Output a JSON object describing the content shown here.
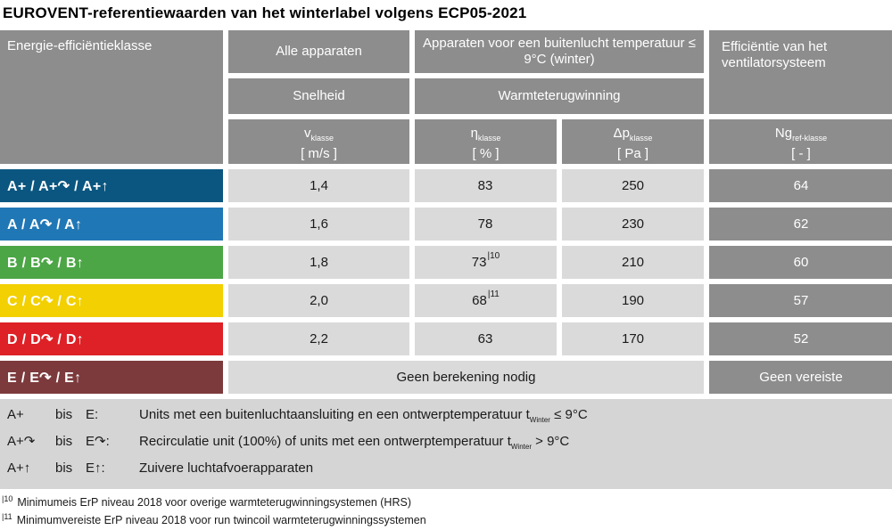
{
  "title": "EUROVENT-referentiewaarden van het winterlabel volgens ECP05-2021",
  "colors": {
    "header_gray": "#8d8d8d",
    "cell_light": "#dadada",
    "legend_bg": "#d5d5d5",
    "class_a_plus": "#0a5680",
    "class_a": "#2077b5",
    "class_b": "#4ca646",
    "class_c": "#f2d001",
    "class_d": "#de2126",
    "class_e": "#7c3a3c"
  },
  "table": {
    "corner_header": "Energie-efficiëntieklasse",
    "group_headers": {
      "all_devices": "Alle apparaten",
      "outdoor": "Apparaten voor een buitenlucht temperatuur ≤ 9°C (winter)",
      "fan_efficiency": "Efficiëntie van het ventilatorsysteem"
    },
    "sub_headers": {
      "speed": "Snelheid",
      "heat_recovery": "Warmteterugwinning"
    },
    "col_headers": [
      {
        "symbol": "v",
        "sub": "klasse",
        "unit": "[ m/s ]"
      },
      {
        "symbol": "η",
        "sub": "klasse",
        "unit": "[ % ]"
      },
      {
        "symbol": "Δp",
        "sub": "klasse",
        "unit": "[ Pa ]"
      },
      {
        "symbol": "Ng",
        "sub": "ref-klasse",
        "unit": "[ - ]"
      }
    ],
    "rows": [
      {
        "label": "A+ / A+↷ / A+↑",
        "color": "#0a5680",
        "v": "1,4",
        "eta": "83",
        "eta_sup": "",
        "dp": "250",
        "ng": "64"
      },
      {
        "label": "A / A↷ / A↑",
        "color": "#2077b5",
        "v": "1,6",
        "eta": "78",
        "eta_sup": "",
        "dp": "230",
        "ng": "62"
      },
      {
        "label": "B / B↷ / B↑",
        "color": "#4ca646",
        "v": "1,8",
        "eta": "73",
        "eta_sup": "|10",
        "dp": "210",
        "ng": "60"
      },
      {
        "label": "C / C↷ / C↑",
        "color": "#f2d001",
        "v": "2,0",
        "eta": "68",
        "eta_sup": "|11",
        "dp": "190",
        "ng": "57"
      },
      {
        "label": "D / D↷ / D↑",
        "color": "#de2126",
        "v": "2,2",
        "eta": "63",
        "eta_sup": "",
        "dp": "170",
        "ng": "52"
      }
    ],
    "row_e": {
      "label": "E / E↷ / E↑",
      "color": "#7c3a3c",
      "span_text": "Geen berekening nodig",
      "ng": "Geen vereiste"
    }
  },
  "legend": [
    {
      "sym": "A+",
      "bis": "bis",
      "to": "E:",
      "text": "Units met een buitenluchtaansluiting en een ontwerptemperatuur t",
      "tsub": "Winter",
      "tail": " ≤ 9°C"
    },
    {
      "sym": "A+↷",
      "bis": "bis",
      "to": "E↷:",
      "text": "Recirculatie unit (100%) of units met een ontwerptemperatuur t",
      "tsub": "Winter",
      "tail": " > 9°C"
    },
    {
      "sym": "A+↑",
      "bis": "bis",
      "to": "E↑:",
      "text": "Zuivere luchtafvoerapparaten",
      "tsub": "",
      "tail": ""
    }
  ],
  "footnotes": [
    {
      "sup": "|10",
      "text": "Minimumeis ErP niveau 2018 voor overige warmteterugwinningsystemen (HRS)"
    },
    {
      "sup": "|11",
      "text": "Minimumvereiste ErP niveau 2018 voor run twincoil warmteterugwinningssystemen"
    }
  ]
}
